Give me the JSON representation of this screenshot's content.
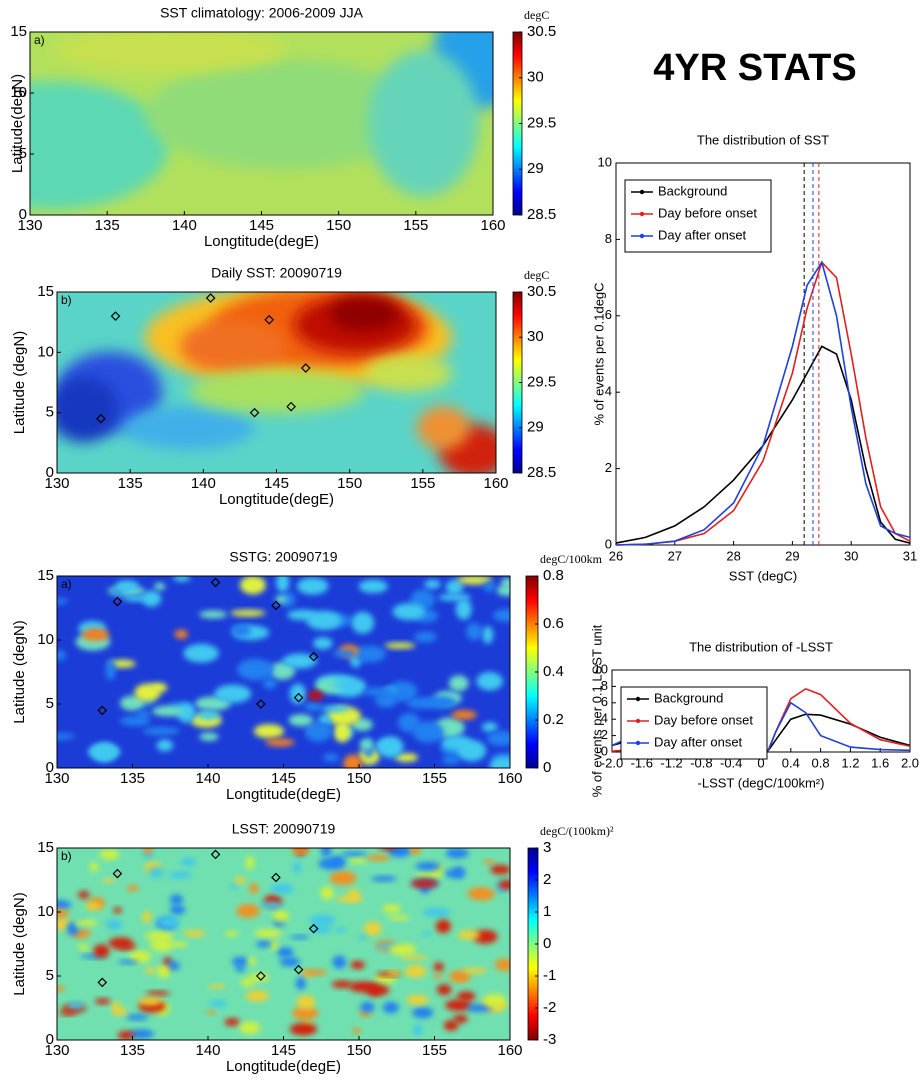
{
  "heading": "4YR STATS",
  "chart_data": [
    {
      "type": "heatmap",
      "title": "SST climatology: 2006-2009 JJA",
      "panel_label": "a)",
      "xlabel": "Longtitude(degE)",
      "ylabel": "Latitude(degN)",
      "xlim": [
        130,
        160
      ],
      "xticks": [
        130,
        135,
        140,
        145,
        150,
        155,
        160
      ],
      "ylim": [
        0,
        15
      ],
      "yticks": [
        0,
        5,
        10,
        15
      ],
      "clabel": "degC",
      "clim": [
        28.5,
        30.5
      ],
      "cticks": [
        28.5,
        29,
        29.5,
        30,
        30.5
      ],
      "colormap": "jet",
      "markers": {
        "x": [],
        "y": []
      }
    },
    {
      "type": "heatmap",
      "title": "Daily SST: 20090719",
      "panel_label": "b)",
      "xlabel": "Longtitude(degE)",
      "ylabel": "Latitude (degN)",
      "xlim": [
        130,
        160
      ],
      "xticks": [
        130,
        135,
        140,
        145,
        150,
        155,
        160
      ],
      "ylim": [
        0,
        15
      ],
      "yticks": [
        0,
        5,
        10,
        15
      ],
      "clabel": "degC",
      "clim": [
        28.5,
        30.5
      ],
      "cticks": [
        28.5,
        29,
        29.5,
        30,
        30.5
      ],
      "colormap": "jet",
      "markers": {
        "x": [
          134,
          140.5,
          144.5,
          147,
          143.5,
          146,
          133
        ],
        "y": [
          13,
          14.5,
          12.7,
          8.7,
          5,
          5.5,
          4.5
        ]
      }
    },
    {
      "type": "heatmap",
      "title": "SSTG: 20090719",
      "panel_label": "a)",
      "xlabel": "Longtitude(degE)",
      "ylabel": "Latitude (degN)",
      "xlim": [
        130,
        160
      ],
      "xticks": [
        130,
        135,
        140,
        145,
        150,
        155,
        160
      ],
      "ylim": [
        0,
        15
      ],
      "yticks": [
        0,
        5,
        10,
        15
      ],
      "clabel": "degC/100km",
      "clim": [
        0,
        0.8
      ],
      "cticks": [
        0,
        0.2,
        0.4,
        0.6,
        0.8
      ],
      "colormap": "jet",
      "markers": {
        "x": [
          134,
          140.5,
          144.5,
          147,
          143.5,
          146,
          133
        ],
        "y": [
          13,
          14.5,
          12.7,
          8.7,
          5,
          5.5,
          4.5
        ]
      }
    },
    {
      "type": "heatmap",
      "title": "LSST: 20090719",
      "panel_label": "b)",
      "xlabel": "Longtitude(degE)",
      "ylabel": "Latitude (degN)",
      "xlim": [
        130,
        160
      ],
      "xticks": [
        130,
        135,
        140,
        145,
        150,
        155,
        160
      ],
      "ylim": [
        0,
        15
      ],
      "yticks": [
        0,
        5,
        10,
        15
      ],
      "clabel": "degC/(100km)²",
      "clim": [
        -3,
        3
      ],
      "cticks": [
        -3,
        -2,
        -1,
        0,
        1,
        2,
        3
      ],
      "colormap": "jet_r",
      "markers": {
        "x": [
          134,
          140.5,
          144.5,
          147,
          143.5,
          146,
          133
        ],
        "y": [
          13,
          14.5,
          12.7,
          8.7,
          5,
          5.5,
          4.5
        ]
      }
    },
    {
      "type": "line",
      "title": "The distribution of SST",
      "xlabel": "SST  (degC)",
      "ylabel": "% of events per 0.1degC",
      "xlim": [
        26,
        31
      ],
      "xticks": [
        26,
        27,
        28,
        29,
        30,
        31
      ],
      "ylim": [
        0,
        10
      ],
      "yticks": [
        0,
        2,
        4,
        6,
        8,
        10
      ],
      "legend": "upper left",
      "x": [
        26,
        26.5,
        27,
        27.5,
        28,
        28.5,
        29,
        29.25,
        29.5,
        29.75,
        30,
        30.25,
        30.5,
        30.75,
        31
      ],
      "series": [
        {
          "name": "Background",
          "color": "#000000",
          "values": [
            0.05,
            0.2,
            0.5,
            1.0,
            1.7,
            2.6,
            3.8,
            4.5,
            5.2,
            5.0,
            3.8,
            2.0,
            0.6,
            0.15,
            0.05
          ],
          "mean": 29.2
        },
        {
          "name": "Day before onset",
          "color": "#e02020",
          "values": [
            0,
            0.02,
            0.1,
            0.3,
            0.9,
            2.2,
            4.5,
            6.2,
            7.4,
            7.0,
            5.0,
            2.8,
            1.0,
            0.3,
            0.1
          ],
          "mean": 29.45
        },
        {
          "name": "Day after onset",
          "color": "#1f3fe0",
          "values": [
            0,
            0.02,
            0.1,
            0.4,
            1.1,
            2.6,
            5.2,
            6.8,
            7.4,
            6.0,
            3.6,
            1.6,
            0.5,
            0.3,
            0.2
          ],
          "mean": 29.35
        }
      ]
    },
    {
      "type": "line",
      "title": "The distribution of -LSST",
      "xlabel": "-LSST  (degC/100km²)",
      "ylabel": "% of events per 0.1 LSST unit",
      "xlim": [
        -2,
        2
      ],
      "xticks": [
        {
          "value": -2,
          "label": "-2.0"
        },
        -1.6,
        -1.2,
        -0.8,
        -0.4,
        0,
        0.4,
        0.8,
        1.2,
        1.6,
        {
          "value": 2,
          "label": "2.0"
        }
      ],
      "ylim": [
        0,
        10
      ],
      "yticks": [
        0,
        2,
        4,
        6,
        8,
        10
      ],
      "legend": "upper left",
      "x": [
        -2,
        -1.6,
        -1.2,
        -0.8,
        -0.6,
        -0.4,
        -0.2,
        -0.1,
        0,
        0.1,
        0.2,
        0.4,
        0.6,
        0.8,
        1.2,
        1.6,
        2
      ],
      "series": [
        {
          "name": "Background",
          "color": "#000000",
          "values": [
            0.8,
            1.8,
            3.4,
            4.4,
            4.6,
            4.0,
            1.5,
            0.2,
            0,
            0.2,
            1.5,
            4.0,
            4.6,
            4.5,
            3.4,
            1.8,
            0.8
          ]
        },
        {
          "name": "Day before onset",
          "color": "#e02020",
          "values": [
            0.1,
            0.4,
            1.0,
            2.0,
            2.8,
            3.7,
            1.5,
            0.1,
            0,
            0.2,
            2.5,
            6.5,
            7.7,
            7.0,
            3.5,
            1.5,
            0.7
          ]
        },
        {
          "name": "Day after onset",
          "color": "#1f3fe0",
          "values": [
            0.8,
            2.4,
            4.6,
            6.2,
            6.4,
            5.8,
            2.5,
            0.2,
            0,
            0.3,
            2.5,
            6.0,
            4.8,
            2.0,
            0.6,
            0.3,
            0.2
          ]
        }
      ]
    }
  ]
}
